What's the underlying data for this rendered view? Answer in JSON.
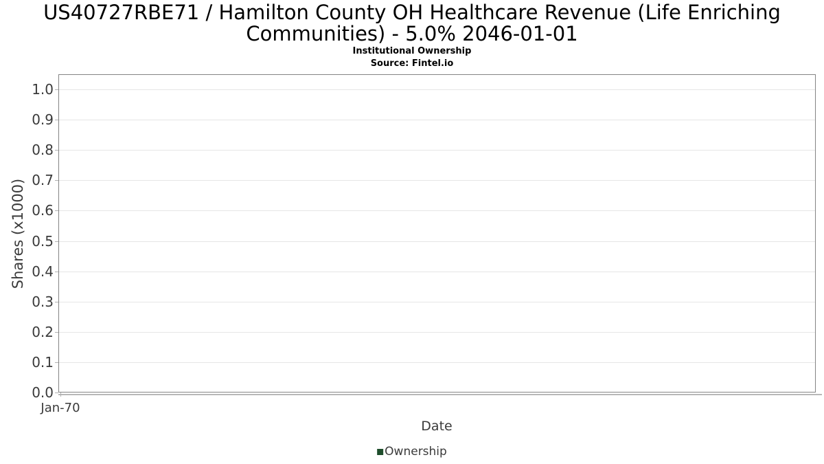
{
  "header": {
    "title": "US40727RBE71 / Hamilton County OH Healthcare Revenue (Life Enriching Communities) - 5.0% 2046-01-01",
    "subtitle": "Institutional Ownership",
    "source": "Source: Fintel.io"
  },
  "chart_data": {
    "type": "line",
    "title": "US40727RBE71 / Hamilton County OH Healthcare Revenue (Life Enriching Communities) - 5.0% 2046-01-01",
    "subtitle": "Institutional Ownership",
    "source": "Source: Fintel.io",
    "xlabel": "Date",
    "ylabel": "Shares (x1000)",
    "x_tick_labels": [
      "Jan-70"
    ],
    "y_tick_labels": [
      "0.0",
      "0.1",
      "0.2",
      "0.3",
      "0.4",
      "0.5",
      "0.6",
      "0.7",
      "0.8",
      "0.9",
      "1.0"
    ],
    "y_tick_values": [
      0,
      0.1,
      0.2,
      0.3,
      0.4,
      0.5,
      0.6,
      0.7,
      0.8,
      0.9,
      1.0
    ],
    "ylim": [
      0,
      1.05
    ],
    "grid": "horizontal",
    "legend": {
      "position": "bottom-center",
      "entries": [
        {
          "label": "Ownership",
          "color": "#1e4d2b"
        }
      ]
    },
    "series": [
      {
        "name": "Ownership",
        "color": "#1e4d2b",
        "x": [],
        "y": []
      }
    ]
  },
  "colors": {
    "background": "#ffffff",
    "title_text": "#000000",
    "axis_text": "#3a3a3a",
    "gridline": "#e6e6e6",
    "plot_border": "#848484",
    "tick_mark": "#b0b0b0",
    "axis_underline": "#b8b8b8",
    "legend_green": "#1e4d2b"
  }
}
